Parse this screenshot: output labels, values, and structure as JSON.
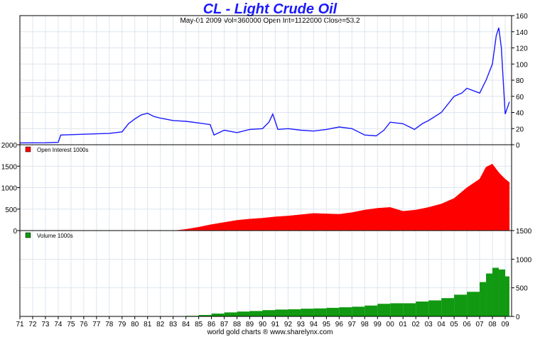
{
  "title": "CL  -  Light Crude Oil",
  "subtitle": "May-01  2009   Vol=360000   Open Int=1122000   Close=53.2",
  "footer": "world gold charts ® www.sharelynx.com",
  "colors": {
    "price_line": "#1a1aff",
    "open_interest": "#ff0000",
    "volume": "#119911",
    "grid": "#dde6ee",
    "frame": "#000000"
  },
  "chart_data": [
    {
      "type": "line",
      "panel": "price",
      "x": [
        1971,
        1972,
        1973,
        1974,
        1974.2,
        1975,
        1976,
        1977,
        1978,
        1979,
        1979.5,
        1980,
        1980.5,
        1981,
        1981.5,
        1982,
        1983,
        1984,
        1985,
        1985.9,
        1986.2,
        1987,
        1988,
        1989,
        1990,
        1990.5,
        1990.8,
        1991.2,
        1992,
        1993,
        1994,
        1995,
        1996,
        1997,
        1998,
        1998.9,
        1999.5,
        2000,
        2001,
        2001.9,
        2002.5,
        2003,
        2004,
        2005,
        2005.6,
        2006,
        2007,
        2007.5,
        2008,
        2008.3,
        2008.5,
        2008.7,
        2008.9,
        2009,
        2009.33
      ],
      "values": [
        2.3,
        2.4,
        2.5,
        3,
        12,
        12.5,
        13,
        13.5,
        14,
        16,
        26,
        32,
        37,
        39,
        35,
        33,
        30,
        29,
        27,
        25,
        12,
        18,
        15,
        19,
        20,
        28,
        38,
        19,
        20,
        18,
        17,
        19,
        22,
        20,
        12,
        11,
        18,
        28,
        26,
        19,
        26,
        30,
        40,
        60,
        64,
        70,
        64,
        80,
        100,
        135,
        145,
        120,
        65,
        38,
        53
      ],
      "ylim": [
        0,
        160
      ],
      "yticks": [
        "0",
        "20",
        "40",
        "60",
        "80",
        "100",
        "120",
        "140",
        "160"
      ],
      "legend": ""
    },
    {
      "type": "area",
      "panel": "open_interest",
      "x": [
        1971,
        1983,
        1983.5,
        1984,
        1985,
        1986,
        1987,
        1988,
        1989,
        1990,
        1991,
        1992,
        1993,
        1994,
        1995,
        1996,
        1997,
        1998,
        1999,
        2000,
        2001,
        2002,
        2003,
        2004,
        2005,
        2006,
        2007,
        2007.5,
        2008,
        2008.5,
        2009,
        2009.33
      ],
      "values": [
        0,
        0,
        10,
        30,
        80,
        140,
        190,
        240,
        270,
        290,
        320,
        340,
        370,
        400,
        390,
        380,
        420,
        480,
        520,
        540,
        450,
        480,
        540,
        620,
        750,
        1000,
        1200,
        1480,
        1550,
        1350,
        1200,
        1122
      ],
      "ylim": [
        0,
        2000
      ],
      "yticks": [
        "0",
        "500",
        "1000",
        "1500",
        "2000"
      ],
      "legend": "Open Interest 1000s"
    },
    {
      "type": "bar",
      "panel": "volume",
      "x": [
        1971,
        1983,
        1983.5,
        1984,
        1985,
        1986,
        1987,
        1988,
        1989,
        1990,
        1991,
        1992,
        1993,
        1994,
        1995,
        1996,
        1997,
        1998,
        1999,
        2000,
        2001,
        2002,
        2003,
        2004,
        2005,
        2006,
        2007,
        2007.5,
        2008,
        2008.5,
        2009,
        2009.33
      ],
      "values": [
        0,
        0,
        5,
        10,
        25,
        50,
        70,
        85,
        95,
        110,
        120,
        125,
        135,
        140,
        150,
        160,
        170,
        190,
        220,
        230,
        230,
        260,
        280,
        320,
        380,
        430,
        600,
        750,
        850,
        820,
        700,
        360
      ],
      "ylim": [
        0,
        1500
      ],
      "yticks": [
        "0",
        "500",
        "1000",
        "1500"
      ],
      "legend": "Volume 1000s"
    }
  ],
  "xaxis": {
    "labels": [
      "71",
      "72",
      "73",
      "74",
      "75",
      "76",
      "77",
      "78",
      "79",
      "80",
      "81",
      "82",
      "83",
      "84",
      "85",
      "86",
      "87",
      "88",
      "89",
      "90",
      "91",
      "92",
      "93",
      "94",
      "95",
      "96",
      "97",
      "98",
      "99",
      "00",
      "01",
      "02",
      "03",
      "04",
      "05",
      "06",
      "07",
      "08",
      "09"
    ],
    "range": [
      1971,
      2009.5
    ]
  }
}
